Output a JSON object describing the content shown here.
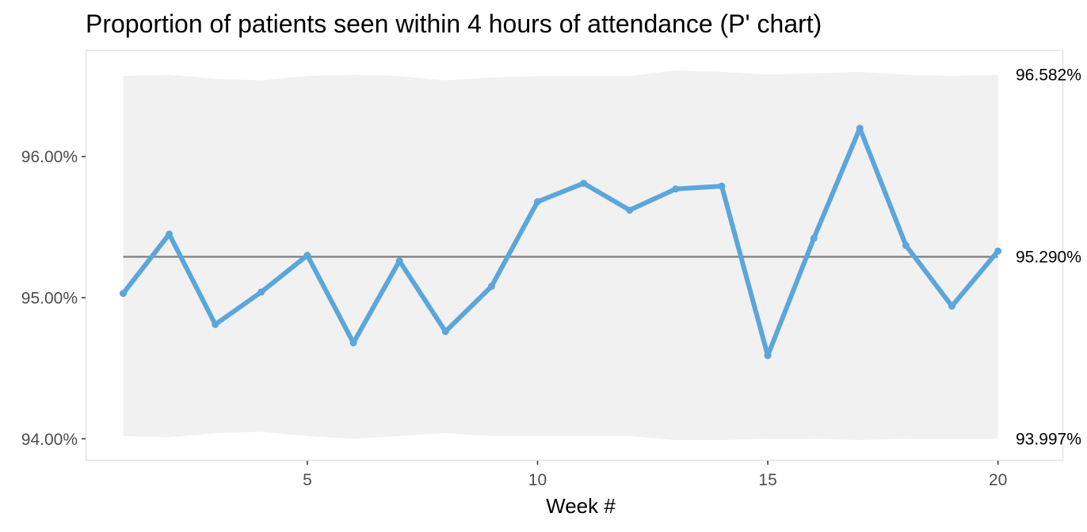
{
  "chart_data": {
    "type": "line",
    "title": "Proportion of patients seen within 4 hours of attendance (P' chart)",
    "xlabel": "Week #",
    "ylabel": "",
    "x": [
      1,
      2,
      3,
      4,
      5,
      6,
      7,
      8,
      9,
      10,
      11,
      12,
      13,
      14,
      15,
      16,
      17,
      18,
      19,
      20
    ],
    "xlim": [
      0.2,
      21.4
    ],
    "ylim": [
      93.85,
      96.75
    ],
    "x_ticks": [
      5,
      10,
      15,
      20
    ],
    "x_tick_labels": [
      "5",
      "10",
      "15",
      "20"
    ],
    "y_ticks": [
      94,
      95,
      96
    ],
    "y_tick_labels": [
      "94.00%",
      "95.00%",
      "96.00%"
    ],
    "series": [
      {
        "values": [
          95.03,
          95.45,
          94.81,
          95.04,
          95.3,
          94.68,
          95.26,
          94.76,
          95.08,
          95.68,
          95.81,
          95.62,
          95.77,
          95.79,
          94.59,
          95.42,
          96.2,
          95.37,
          94.94,
          95.33
        ],
        "color": "#5ba6db"
      }
    ],
    "center_line": {
      "value": 95.29,
      "label": "95.290%",
      "color": "#8c8c8c"
    },
    "control_band": {
      "upper": [
        96.57,
        96.58,
        96.55,
        96.54,
        96.57,
        96.58,
        96.57,
        96.54,
        96.56,
        96.57,
        96.57,
        96.57,
        96.61,
        96.6,
        96.58,
        96.59,
        96.6,
        96.58,
        96.57,
        96.58
      ],
      "lower": [
        94.02,
        94.01,
        94.04,
        94.05,
        94.02,
        94.0,
        94.02,
        94.04,
        94.02,
        94.02,
        94.02,
        94.02,
        93.99,
        93.99,
        94.0,
        94.0,
        93.99,
        94.0,
        94.0,
        94.0
      ],
      "upper_label": "96.582%",
      "lower_label": "93.997%",
      "color": "#f1f1f1"
    },
    "grid": false,
    "legend": "none"
  }
}
